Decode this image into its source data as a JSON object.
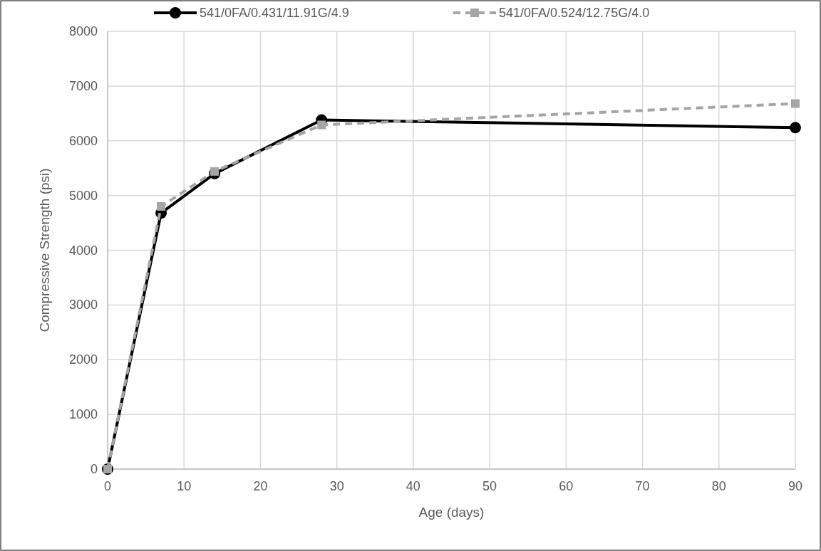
{
  "chart_data": {
    "type": "line",
    "xlabel": "Age (days)",
    "ylabel": "Compressive Strength (psi)",
    "x": [
      0,
      7,
      14,
      28,
      90
    ],
    "series": [
      {
        "name": "541/0FA/0.431/11.91G/4.9",
        "color": "#000000",
        "values": [
          0,
          4680,
          5400,
          6380,
          6240
        ],
        "marker": "circle",
        "line_style": "solid"
      },
      {
        "name": "541/0FA/0.524/12.75G/4.0",
        "color": "#a5a5a5",
        "values": [
          0,
          4800,
          5440,
          6290,
          6680
        ],
        "marker": "square",
        "line_style": "dashed"
      }
    ],
    "xlim": [
      0,
      90
    ],
    "xticks": [
      0,
      10,
      20,
      30,
      40,
      50,
      60,
      70,
      80,
      90
    ],
    "ylim": [
      0,
      8000
    ],
    "yticks": [
      0,
      1000,
      2000,
      3000,
      4000,
      5000,
      6000,
      7000,
      8000
    ],
    "grid": true,
    "legend": "top"
  }
}
